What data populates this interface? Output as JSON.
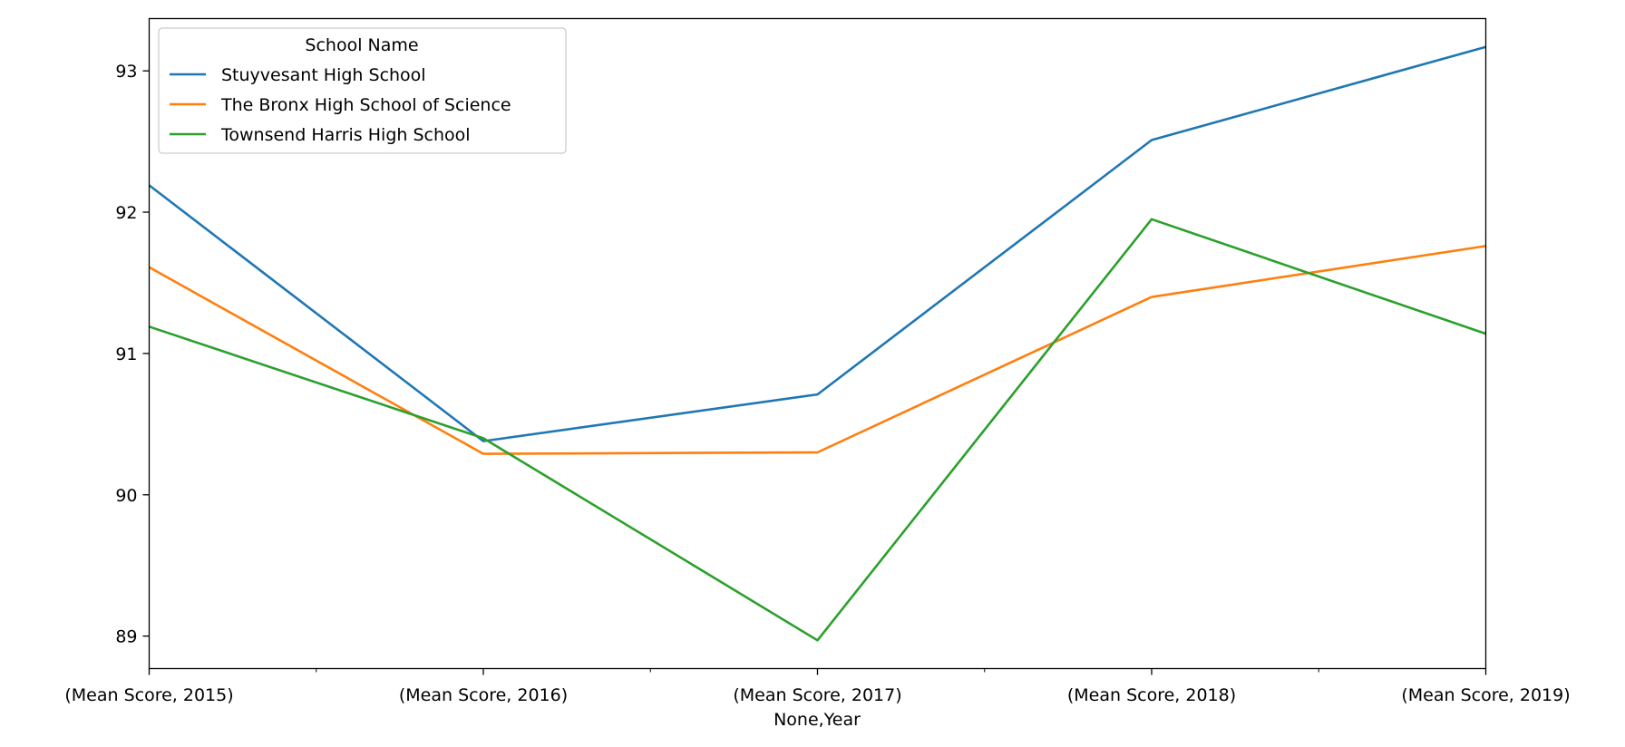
{
  "chart_data": {
    "type": "line",
    "title": "",
    "xlabel": "None,Year",
    "ylabel": "",
    "categories": [
      "(Mean Score, 2015)",
      "(Mean Score, 2016)",
      "(Mean Score, 2017)",
      "(Mean Score, 2018)",
      "(Mean Score, 2019)"
    ],
    "ylim": [
      88.77,
      93.37
    ],
    "yticks": [
      "89",
      "90",
      "91",
      "92",
      "93"
    ],
    "grid": false,
    "legend": {
      "title": "School Name",
      "placement": "upper-left"
    },
    "series": [
      {
        "name": "Stuyvesant High School",
        "color": "#1f77b4",
        "values": [
          92.19,
          90.38,
          90.71,
          92.51,
          93.17
        ]
      },
      {
        "name": "The Bronx High School of Science",
        "color": "#ff7f0e",
        "values": [
          91.61,
          90.29,
          90.3,
          91.4,
          91.76
        ]
      },
      {
        "name": "Townsend Harris High School",
        "color": "#2ca02c",
        "values": [
          91.19,
          90.4,
          88.97,
          91.95,
          91.14
        ]
      }
    ]
  }
}
